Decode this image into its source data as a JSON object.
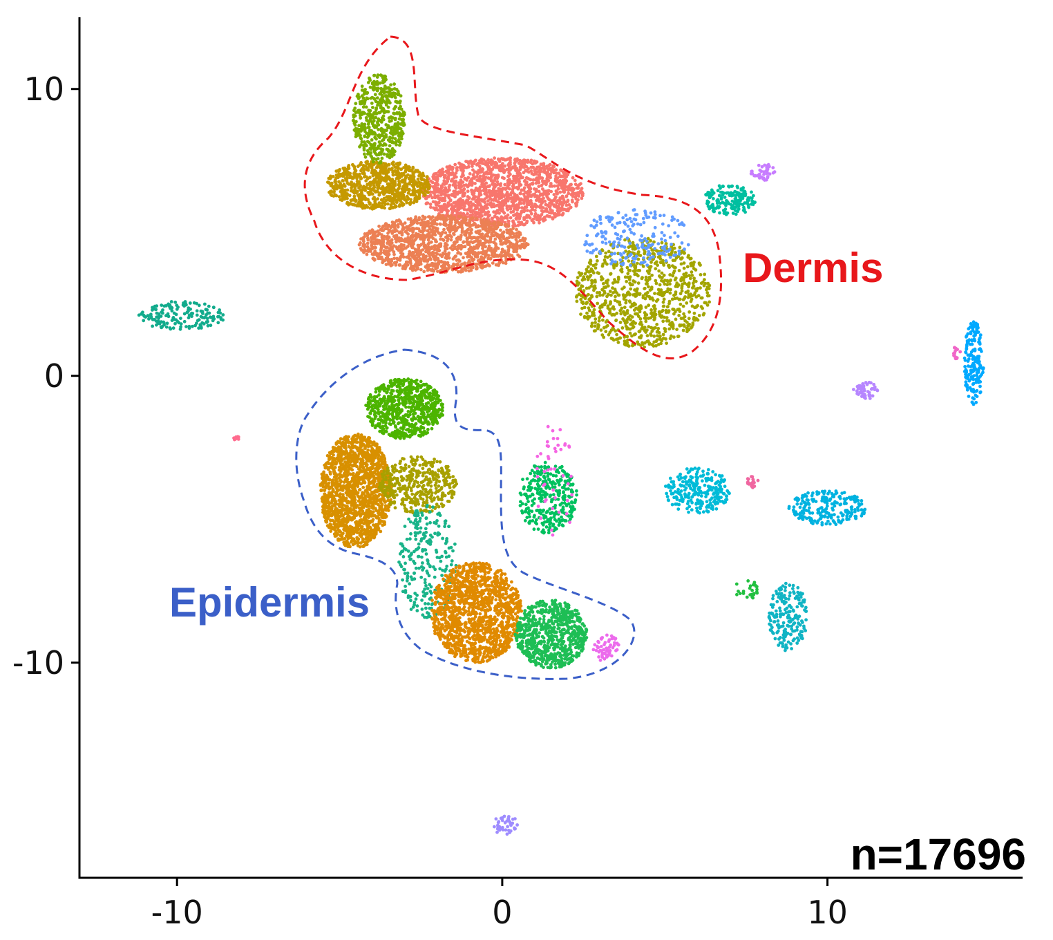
{
  "chart_data": {
    "type": "scatter",
    "title": "",
    "xlabel": "",
    "ylabel": "",
    "xlim": [
      -13,
      16
    ],
    "ylim": [
      -17.5,
      12.5
    ],
    "xticks": [
      "-10",
      "0",
      "10"
    ],
    "yticks": [
      "10",
      "0",
      "-10"
    ],
    "grid": false,
    "legend": "none",
    "count_label": "n=17696",
    "regions": [
      {
        "label": "Dermis",
        "color": "#e8171b"
      },
      {
        "label": "Epidermis",
        "color": "#3b5fc8"
      }
    ],
    "clusters": [
      {
        "color": "#f8766d",
        "n": 1500,
        "x": [
          -2.5,
          2.5
        ],
        "y": [
          5.2,
          7.6
        ]
      },
      {
        "color": "#ec8054",
        "n": 1300,
        "x": [
          -4.4,
          0.8
        ],
        "y": [
          3.6,
          5.6
        ]
      },
      {
        "color": "#c59900",
        "n": 800,
        "x": [
          -5.4,
          -2.2
        ],
        "y": [
          5.8,
          7.5
        ]
      },
      {
        "color": "#7cae00",
        "n": 500,
        "x": [
          -4.6,
          -3.0
        ],
        "y": [
          7.4,
          10.5
        ]
      },
      {
        "color": "#a3a500",
        "n": 900,
        "x": [
          2.2,
          6.4
        ],
        "y": [
          1.0,
          4.8
        ]
      },
      {
        "color": "#619cff",
        "n": 200,
        "x": [
          2.4,
          5.8
        ],
        "y": [
          3.8,
          5.8
        ]
      },
      {
        "color": "#00bfa0",
        "n": 170,
        "x": [
          6.2,
          7.8
        ],
        "y": [
          5.6,
          6.7
        ]
      },
      {
        "color": "#c77cff",
        "n": 40,
        "x": [
          7.6,
          8.4
        ],
        "y": [
          6.8,
          7.4
        ]
      },
      {
        "color": "#12ab8c",
        "n": 160,
        "x": [
          -11.2,
          -8.5
        ],
        "y": [
          1.6,
          2.6
        ]
      },
      {
        "color": "#4cb400",
        "n": 700,
        "x": [
          -4.2,
          -1.8
        ],
        "y": [
          -2.2,
          -0.1
        ]
      },
      {
        "color": "#d89000",
        "n": 1500,
        "x": [
          -5.6,
          -3.4
        ],
        "y": [
          -6.0,
          -2.0
        ]
      },
      {
        "color": "#a8a000",
        "n": 400,
        "x": [
          -3.8,
          -1.4
        ],
        "y": [
          -4.8,
          -2.8
        ]
      },
      {
        "color": "#19b389",
        "n": 250,
        "x": [
          -3.2,
          -1.4
        ],
        "y": [
          -8.5,
          -4.5
        ]
      },
      {
        "color": "#e08a00",
        "n": 1400,
        "x": [
          -2.2,
          0.6
        ],
        "y": [
          -10.0,
          -6.5
        ]
      },
      {
        "color": "#1ebe55",
        "n": 700,
        "x": [
          0.4,
          2.6
        ],
        "y": [
          -10.2,
          -7.8
        ]
      },
      {
        "color": "#ec6bec",
        "n": 60,
        "x": [
          2.8,
          3.6
        ],
        "y": [
          -10.0,
          -9.0
        ]
      },
      {
        "color": "#00c15f",
        "n": 320,
        "x": [
          0.5,
          2.3
        ],
        "y": [
          -5.5,
          -3.0
        ]
      },
      {
        "color": "#f564e3",
        "n": 45,
        "x": [
          1.0,
          2.2
        ],
        "y": [
          -6.0,
          -1.5
        ]
      },
      {
        "color": "#00bbd8",
        "n": 260,
        "x": [
          5.0,
          7.0
        ],
        "y": [
          -4.8,
          -3.2
        ]
      },
      {
        "color": "#00b2e0",
        "n": 220,
        "x": [
          8.8,
          11.2
        ],
        "y": [
          -5.2,
          -4.0
        ]
      },
      {
        "color": "#10b4c4",
        "n": 200,
        "x": [
          8.2,
          9.4
        ],
        "y": [
          -9.6,
          -7.2
        ]
      },
      {
        "color": "#00a9ff",
        "n": 180,
        "x": [
          14.2,
          14.8
        ],
        "y": [
          -1.0,
          1.9
        ]
      },
      {
        "color": "#b686ff",
        "n": 50,
        "x": [
          10.8,
          11.6
        ],
        "y": [
          -0.8,
          -0.2
        ]
      },
      {
        "color": "#f066c8",
        "n": 15,
        "x": [
          13.8,
          14.1
        ],
        "y": [
          0.6,
          1.0
        ]
      },
      {
        "color": "#f066a0",
        "n": 20,
        "x": [
          7.5,
          7.9
        ],
        "y": [
          -3.9,
          -3.5
        ]
      },
      {
        "color": "#ff6b8e",
        "n": 8,
        "x": [
          -8.3,
          -8.0
        ],
        "y": [
          -2.3,
          -2.1
        ]
      },
      {
        "color": "#9e8cff",
        "n": 40,
        "x": [
          -0.3,
          0.5
        ],
        "y": [
          -16.0,
          -15.3
        ]
      },
      {
        "color": "#22c040",
        "n": 25,
        "x": [
          7.1,
          7.9
        ],
        "y": [
          -7.8,
          -7.1
        ]
      }
    ]
  }
}
